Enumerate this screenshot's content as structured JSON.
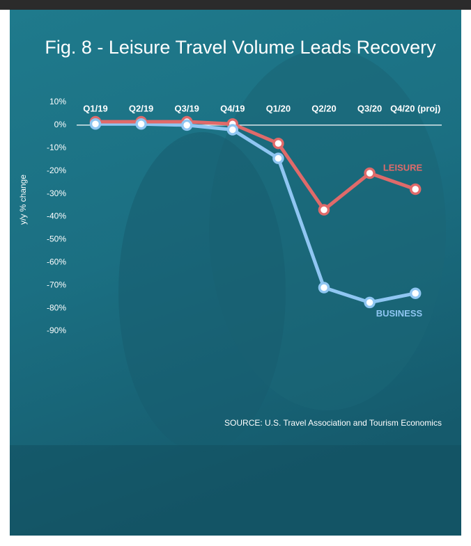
{
  "chart_data": {
    "type": "line",
    "title": "Fig. 8 - Leisure Travel Volume Leads Recovery",
    "y_label": "y/y % change",
    "source": "SOURCE: U.S. Travel Association and Tourism Economics",
    "categories": [
      "Q1/19",
      "Q2/19",
      "Q3/19",
      "Q4/19",
      "Q1/20",
      "Q2/20",
      "Q3/20",
      "Q4/20 (proj)"
    ],
    "series": [
      {
        "name": "LEISURE",
        "color": "#e06a6a",
        "values": [
          1.5,
          1.5,
          1.5,
          0.5,
          -8,
          -37,
          -21,
          -28
        ]
      },
      {
        "name": "BUSINESS",
        "color": "#8fc6f2",
        "values": [
          0.5,
          0.5,
          0,
          -2,
          -14.5,
          -71,
          -77.5,
          -73.5
        ]
      }
    ],
    "ylim": [
      -90,
      10
    ],
    "yticks": [
      {
        "value": 10,
        "label": "10%"
      },
      {
        "value": 0,
        "label": "0%"
      },
      {
        "value": -10,
        "label": "-10%"
      },
      {
        "value": -20,
        "label": "-20%"
      },
      {
        "value": -30,
        "label": "-30%"
      },
      {
        "value": -40,
        "label": "-40%"
      },
      {
        "value": -50,
        "label": "-50%"
      },
      {
        "value": -60,
        "label": "-60%"
      },
      {
        "value": -70,
        "label": "-70%"
      },
      {
        "value": -80,
        "label": "-80%"
      },
      {
        "value": -90,
        "label": "-90%"
      }
    ],
    "zero_line": true
  }
}
